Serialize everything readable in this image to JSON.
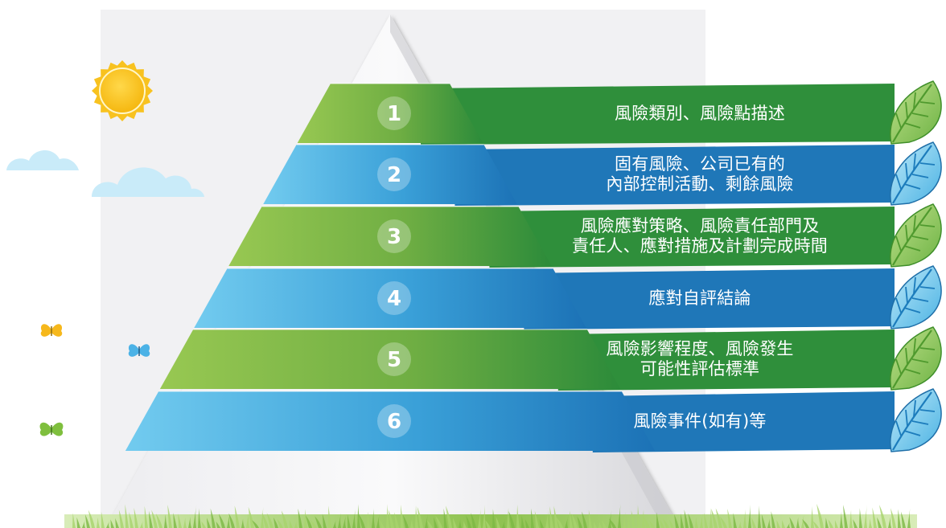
{
  "colors": {
    "green_dark": "#2f8f3b",
    "green_light": "#8fc04b",
    "blue_dark": "#1f77b8",
    "blue_light": "#67c4ea",
    "sun": "#f8c21f",
    "cloud": "#c9ebf9",
    "backdrop": "#f1f1f3"
  },
  "tiers": [
    {
      "number": "1",
      "color": "green",
      "lines": [
        "風險類別、風險點描述"
      ]
    },
    {
      "number": "2",
      "color": "blue",
      "lines": [
        "固有風險、公司已有的",
        "內部控制活動、剩餘風險"
      ]
    },
    {
      "number": "3",
      "color": "green",
      "lines": [
        "風險應對策略、風險責任部門及",
        "責任人、應對措施及計劃完成時間"
      ]
    },
    {
      "number": "4",
      "color": "blue",
      "lines": [
        "應對自評結論"
      ]
    },
    {
      "number": "5",
      "color": "green",
      "lines": [
        "風險影響程度、風險發生",
        "可能性評估標準"
      ]
    },
    {
      "number": "6",
      "color": "blue",
      "lines": [
        "風險事件(如有)等"
      ]
    }
  ]
}
